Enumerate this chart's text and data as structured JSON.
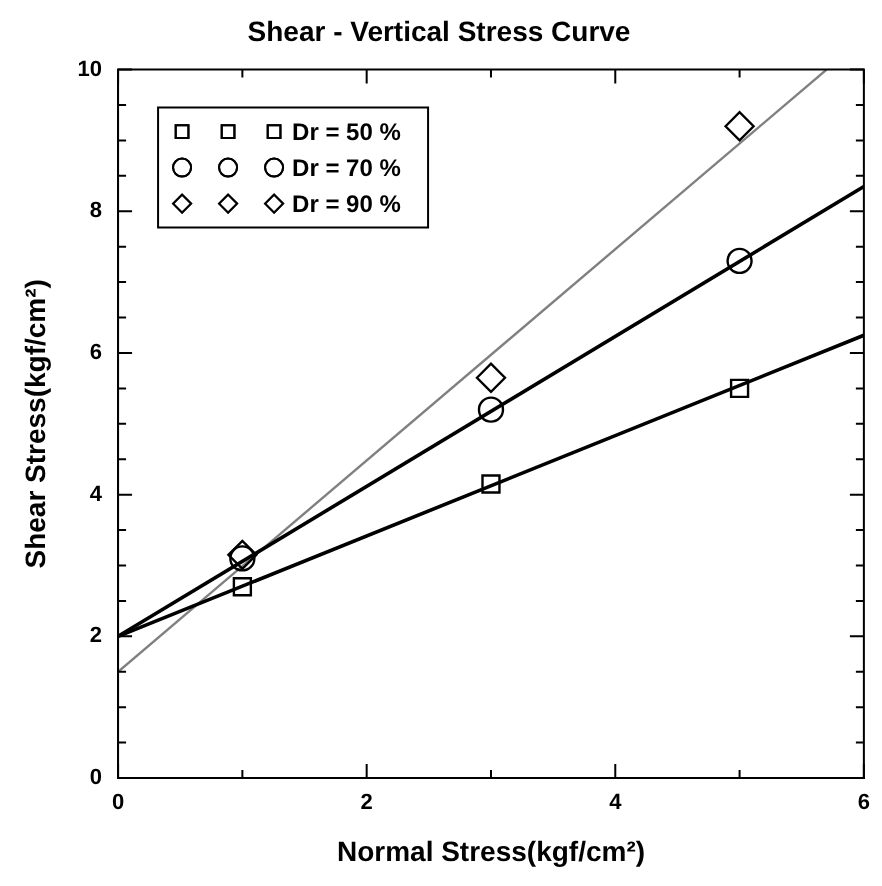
{
  "chart_data": {
    "type": "scatter",
    "title": "Shear - Vertical Stress Curve",
    "xlabel": "Normal Stress(kgf/cm²)",
    "ylabel": "Shear Stress(kgf/cm²)",
    "xlim": [
      0,
      6
    ],
    "xticks": [
      0,
      {
        "value": 1,
        "label": null
      },
      2,
      {
        "value": 3,
        "label": null
      },
      4,
      {
        "value": 5,
        "label": null
      },
      6
    ],
    "ylim": [
      0,
      10
    ],
    "yticks": [
      0,
      {
        "value": 0.5,
        "label": null
      },
      {
        "value": 1,
        "label": null
      },
      {
        "value": 1.5,
        "label": null
      },
      2,
      {
        "value": 2.5,
        "label": null
      },
      {
        "value": 3,
        "label": null
      },
      {
        "value": 3.5,
        "label": null
      },
      4,
      {
        "value": 4.5,
        "label": null
      },
      {
        "value": 5,
        "label": null
      },
      {
        "value": 5.5,
        "label": null
      },
      6,
      {
        "value": 6.5,
        "label": null
      },
      {
        "value": 7,
        "label": null
      },
      {
        "value": 7.5,
        "label": null
      },
      8,
      {
        "value": 8.5,
        "label": null
      },
      {
        "value": 9,
        "label": null
      },
      {
        "value": 9.5,
        "label": null
      },
      10
    ],
    "grid": false,
    "legend": "top left",
    "series": [
      {
        "type": "scatter",
        "name": "Dr = 50 %",
        "color": "#000000",
        "marker": "square",
        "x": [
          1,
          3,
          5
        ],
        "values": [
          2.7,
          4.15,
          5.5
        ]
      },
      {
        "type": "scatter",
        "name": "Dr = 70 %",
        "color": "#000000",
        "marker": "circle",
        "x": [
          1,
          3,
          5
        ],
        "values": [
          3.1,
          5.2,
          7.3
        ]
      },
      {
        "type": "scatter",
        "name": "Dr = 90 %",
        "color": "#000000",
        "marker": "diamond",
        "x": [
          1,
          3,
          5
        ],
        "values": [
          3.15,
          5.65,
          9.2
        ]
      },
      {
        "type": "line",
        "color": "#000000",
        "marker": "none",
        "x": [
          0,
          6
        ],
        "values": [
          2,
          6.25
        ]
      },
      {
        "type": "line",
        "color": "#000000",
        "marker": "none",
        "x": [
          0,
          6
        ],
        "values": [
          2,
          8.35
        ]
      },
      {
        "type": "line",
        "color": "#808080",
        "marker": "none",
        "x": [
          0,
          5.7
        ],
        "values": [
          1.5,
          10
        ]
      }
    ]
  }
}
